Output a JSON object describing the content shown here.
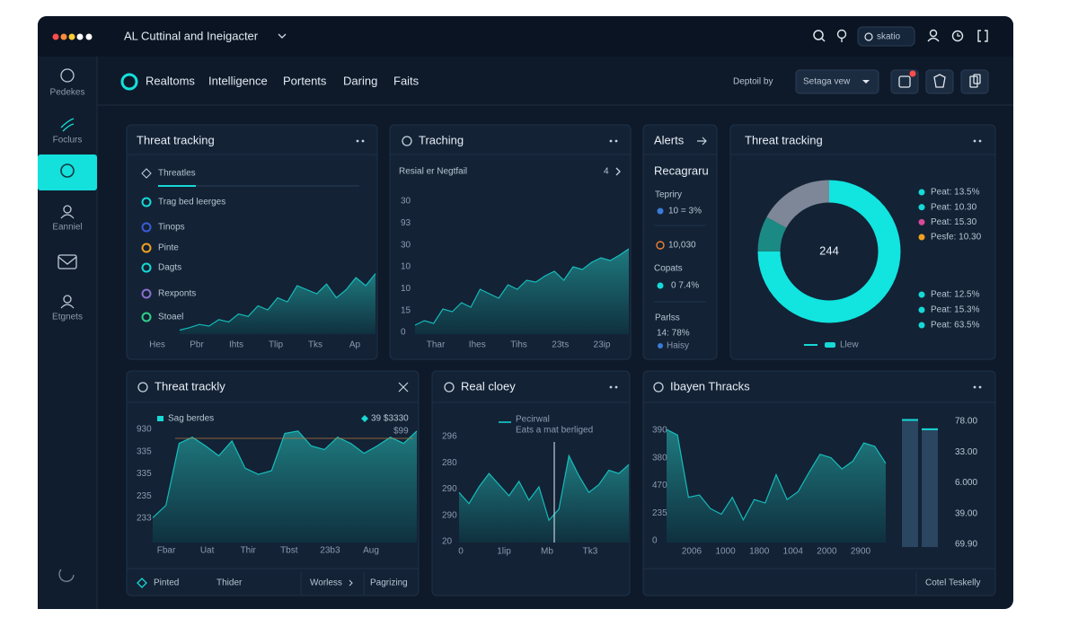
{
  "app": {
    "title": "AL Cuttinal and Ineigacter",
    "user_button": "skatio"
  },
  "sidebar": [
    "Pedekes",
    "Foclurs",
    "Eanniel",
    "Etgnets"
  ],
  "nav": {
    "tabs": [
      "Realtoms",
      "Intelligence",
      "Portents",
      "Daring",
      "Faits"
    ],
    "deploy_label": "Deptoil by",
    "select": "Setaga vew"
  },
  "panels": {
    "threat_list": {
      "title": "Threat tracking",
      "tab": "Threatles",
      "items": [
        "Trag bed leerges",
        "Tinops",
        "Pinte",
        "Dagts",
        "Rexponts",
        "Stoael"
      ],
      "x_labels": [
        "Hes",
        "Pbr",
        "Ihts",
        "Tlip",
        "Tks",
        "Ap"
      ],
      "chart": {
        "type": "area",
        "values": [
          5,
          8,
          12,
          10,
          18,
          15,
          25,
          22,
          35,
          30,
          45,
          40,
          60,
          55,
          50,
          62,
          45,
          55,
          70,
          60,
          75
        ],
        "ylim": [
          0,
          100
        ],
        "color": "#16d9d5"
      }
    },
    "traching": {
      "title": "Traching",
      "subtitle": "Resial er Negtfail",
      "page": "4",
      "y_labels": [
        "30",
        "93",
        "30",
        "10",
        "10",
        "15",
        "0"
      ],
      "x_labels": [
        "Thar",
        "Ihes",
        "Tihs",
        "23ts",
        "23ip"
      ],
      "chart": {
        "type": "area",
        "values": [
          10,
          15,
          12,
          28,
          25,
          35,
          30,
          50,
          45,
          40,
          55,
          50,
          60,
          58,
          65,
          70,
          60,
          75,
          72,
          80,
          85,
          82,
          88,
          95
        ],
        "ylim": [
          0,
          100
        ],
        "color": "#16d9d5"
      }
    },
    "alerts": {
      "title": "Alerts",
      "heading": "Recagraru",
      "entries": [
        {
          "label": "Tepriry",
          "value": "10 = 3%"
        },
        {
          "value": "10,030"
        },
        {
          "label": "Copats",
          "value": "0 7.4%"
        },
        {
          "label": "Parlss",
          "value": "14: 78%",
          "note": "Haisy"
        }
      ]
    },
    "donut": {
      "title": "Threat tracking",
      "center": "244",
      "legend_top": [
        "Peat: 13.5%",
        "Peat: 10.30",
        "Peat: 15.30",
        "Pesfe: 10.30"
      ],
      "legend_top_colors": [
        "#16d9d5",
        "#16d9d5",
        "#d94a9a",
        "#f0a020"
      ],
      "legend_bottom": [
        "Peat: 12.5%",
        "Peat: 15.3%",
        "Peat: 63.5%"
      ],
      "legend_key": "Llew",
      "chart": {
        "type": "pie",
        "values": [
          75,
          8,
          17
        ],
        "colors": [
          "#12e4e0",
          "#1c8a84",
          "#7d8797"
        ]
      }
    },
    "threat_trackly": {
      "title": "Threat trackly",
      "legend": "Sag berdes",
      "stat": "39 $3330",
      "stat_sub": "$99",
      "y_labels": [
        "930",
        "335",
        "335",
        "235",
        "233"
      ],
      "x_labels": [
        "Fbar",
        "Uat",
        "Thir",
        "Tbst",
        "23b3",
        "Aug"
      ],
      "footer": [
        "Pinted",
        "Thider",
        "Worless",
        "Pagrizing"
      ],
      "chart": {
        "type": "area",
        "values": [
          20,
          30,
          80,
          85,
          78,
          70,
          82,
          60,
          55,
          58,
          88,
          90,
          78,
          75,
          85,
          80,
          72,
          78,
          85,
          80,
          90
        ],
        "ylim": [
          0,
          100
        ],
        "color": "#16d9d5"
      }
    },
    "real_cloey": {
      "title": "Real cloey",
      "legend": "Pecirwal",
      "legend_sub": "Eats a mat berliged",
      "y_labels": [
        "296",
        "280",
        "290",
        "290",
        "20"
      ],
      "x_labels": [
        "0",
        "1lip",
        "Mb",
        "Tk3"
      ],
      "chart": {
        "type": "area",
        "values": [
          45,
          35,
          50,
          62,
          52,
          42,
          55,
          38,
          50,
          20,
          30,
          78,
          60,
          45,
          52,
          65,
          62,
          70
        ],
        "ylim": [
          0,
          100
        ],
        "color": "#16d9d5"
      }
    },
    "ibayen": {
      "title": "Ibayen Thracks",
      "y_labels": [
        "390",
        "380",
        "470",
        "235",
        "0"
      ],
      "x_labels": [
        "2006",
        "1000",
        "1800",
        "1004",
        "2000",
        "2900"
      ],
      "right_labels": [
        "78.00",
        "33.00",
        "6.000",
        "39.00",
        "69.90"
      ],
      "footer": "Cotel Teskelly",
      "chart": {
        "type": "area",
        "values": [
          100,
          95,
          40,
          42,
          30,
          25,
          40,
          20,
          38,
          35,
          60,
          38,
          45,
          62,
          78,
          75,
          65,
          72,
          88,
          85,
          70
        ],
        "ylim": [
          0,
          100
        ],
        "color": "#16d9d5"
      },
      "bars": {
        "type": "bar",
        "values": [
          95,
          88
        ],
        "ylim": [
          0,
          100
        ],
        "color": "#2a4660"
      }
    }
  }
}
